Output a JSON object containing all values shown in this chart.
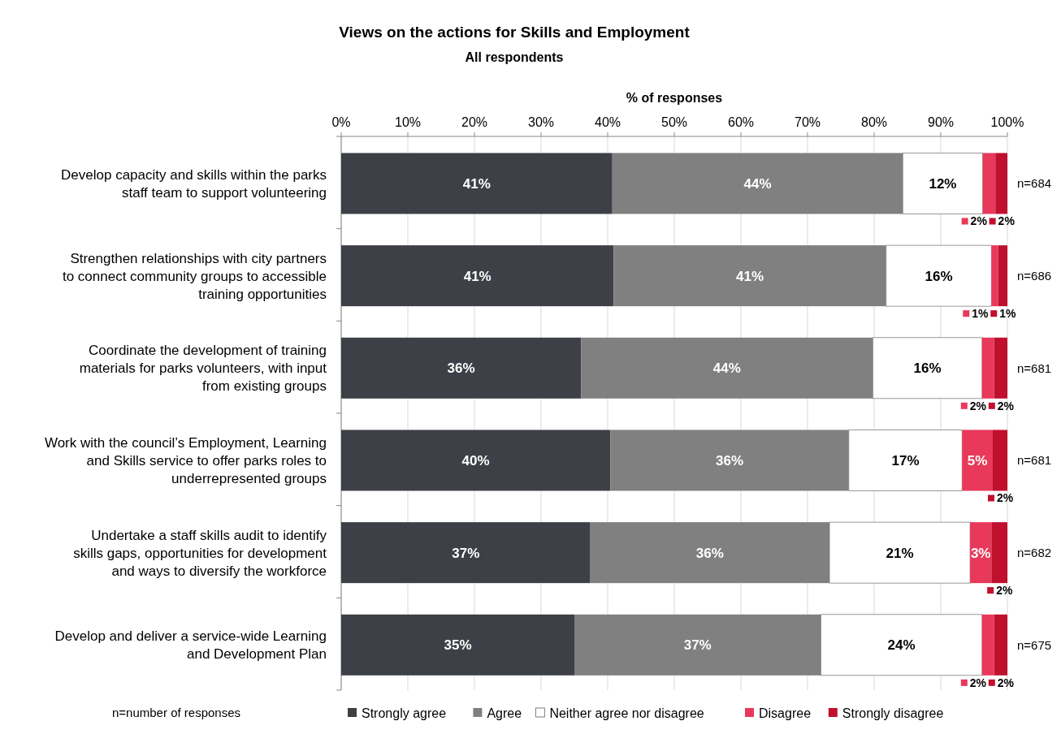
{
  "chart_data": {
    "type": "bar",
    "orientation": "horizontal",
    "stacked": true,
    "title": "Views on the actions for Skills and Employment",
    "subtitle": "All respondents",
    "xlabel": "% of responses",
    "categories": [
      "Develop capacity and skills within the parks staff team to support volunteering",
      "Strengthen relationships with city partners to connect community groups to accessible training opportunities",
      "Coordinate the development of training materials for parks volunteers, with input from existing groups",
      "Work with the council’s Employment, Learning and Skills service to offer parks roles to underrepresented groups",
      "Undertake a staff skills audit to identify skills gaps, opportunities for development and ways to diversify the workforce",
      "Develop and deliver a service-wide Learning and Development Plan"
    ],
    "series": [
      {
        "name": "Strongly agree",
        "color": "#3d4046",
        "values": [
          40.7,
          40.9,
          36.0,
          40.4,
          37.4,
          35.0
        ],
        "value_labels": [
          "41%",
          "41%",
          "36%",
          "40%",
          "37%",
          "35%"
        ]
      },
      {
        "name": "Agree",
        "color": "#808080",
        "values": [
          43.6,
          40.9,
          43.8,
          35.8,
          35.9,
          37.0
        ],
        "value_labels": [
          "44%",
          "41%",
          "44%",
          "36%",
          "36%",
          "37%"
        ]
      },
      {
        "name": "Neither agree nor disagree",
        "color": "#ffffff",
        "values": [
          12.0,
          15.8,
          16.4,
          17.0,
          21.1,
          24.2
        ],
        "value_labels": [
          "12%",
          "16%",
          "16%",
          "17%",
          "21%",
          "24%"
        ]
      },
      {
        "name": "Disagree",
        "color": "#e8395a",
        "values": [
          1.9,
          1.0,
          1.8,
          4.6,
          3.2,
          1.8
        ],
        "value_labels": [
          "2%",
          "1%",
          "2%",
          "5%",
          "3%",
          "2%"
        ]
      },
      {
        "name": "Strongly disagree",
        "color": "#c0102e",
        "values": [
          1.8,
          1.4,
          2.0,
          2.2,
          2.4,
          2.0
        ],
        "value_labels": [
          "2%",
          "1%",
          "2%",
          "2%",
          "2%",
          "2%"
        ]
      }
    ],
    "xlim": [
      0,
      100
    ],
    "xticks": [
      {
        "value": 0,
        "label": "0%"
      },
      {
        "value": 10,
        "label": "10%"
      },
      {
        "value": 20,
        "label": "20%"
      },
      {
        "value": 30,
        "label": "30%"
      },
      {
        "value": 40,
        "label": "40%"
      },
      {
        "value": 50,
        "label": "50%"
      },
      {
        "value": 60,
        "label": "60%"
      },
      {
        "value": 70,
        "label": "70%"
      },
      {
        "value": 80,
        "label": "80%"
      },
      {
        "value": 90,
        "label": "90%"
      },
      {
        "value": 100,
        "label": "100%"
      }
    ],
    "grid": "x",
    "legend": "bottom",
    "annotations": [
      "n=684",
      "n=686",
      "n=681",
      "n=681",
      "n=682",
      "n=675",
      "n=number of responses"
    ]
  }
}
